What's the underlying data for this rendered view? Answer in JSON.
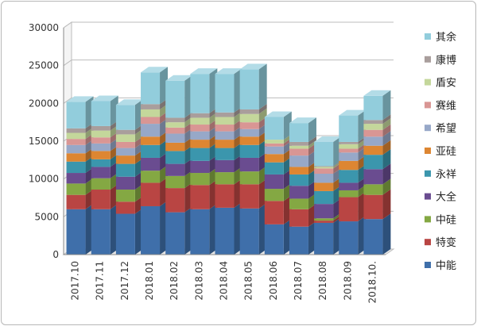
{
  "chart_data": {
    "type": "bar",
    "stacked": true,
    "three_d": true,
    "ylim": [
      0,
      30000
    ],
    "yticks": [
      0,
      5000,
      10000,
      15000,
      20000,
      25000,
      30000
    ],
    "grid": true,
    "legend_position": "right",
    "categories": [
      "2017.10",
      "2017.11",
      "2017.12",
      "2018.01",
      "2018.02",
      "2018.03",
      "2018.04",
      "2018.05",
      "2018.06",
      "2018.07",
      "2018.08",
      "2018.09",
      "2018.10."
    ],
    "series": [
      {
        "name": "中能",
        "color": "#3f6faa",
        "values": [
          6000,
          6000,
          5400,
          6400,
          5600,
          6000,
          6200,
          6100,
          4000,
          3700,
          4200,
          4400,
          4700
        ]
      },
      {
        "name": "特变",
        "color": "#b94543",
        "values": [
          1900,
          2600,
          1600,
          3100,
          3200,
          3200,
          3100,
          3200,
          3100,
          2300,
          300,
          3200,
          3200
        ]
      },
      {
        "name": "中硅",
        "color": "#84a843",
        "values": [
          1500,
          1500,
          1600,
          1600,
          1600,
          1600,
          1600,
          1700,
          1600,
          1400,
          300,
          900,
          1400
        ]
      },
      {
        "name": "大全",
        "color": "#6a4c90",
        "values": [
          1400,
          1500,
          1700,
          1700,
          1600,
          1600,
          1600,
          1800,
          1900,
          1700,
          1900,
          1000,
          2000
        ]
      },
      {
        "name": "永祥",
        "color": "#3b96ad",
        "values": [
          1500,
          1000,
          1700,
          1700,
          1700,
          1700,
          1600,
          1700,
          1600,
          1500,
          1700,
          1700,
          1900
        ]
      },
      {
        "name": "亚硅",
        "color": "#dd8632",
        "values": [
          1100,
          1100,
          1100,
          1100,
          1100,
          1100,
          1100,
          1100,
          1100,
          1000,
          1100,
          1200,
          1200
        ]
      },
      {
        "name": "希望",
        "color": "#97a8c8",
        "values": [
          1100,
          1000,
          1000,
          1700,
          1200,
          1100,
          1100,
          1000,
          1000,
          1500,
          1200,
          1100,
          1200
        ]
      },
      {
        "name": "赛维",
        "color": "#d99694",
        "values": [
          800,
          800,
          800,
          900,
          800,
          900,
          900,
          900,
          400,
          900,
          700,
          500,
          900
        ]
      },
      {
        "name": "盾安",
        "color": "#c4d79b",
        "values": [
          800,
          900,
          1000,
          1000,
          700,
          900,
          1000,
          1100,
          500,
          400,
          200,
          600,
          800
        ]
      },
      {
        "name": "康博",
        "color": "#a99e9c",
        "values": [
          600,
          600,
          600,
          700,
          600,
          600,
          600,
          600,
          0,
          500,
          100,
          300,
          500
        ]
      },
      {
        "name": "其余",
        "color": "#92cddc",
        "values": [
          3500,
          3300,
          3300,
          4200,
          4900,
          5200,
          5100,
          5300,
          3000,
          2500,
          3200,
          3500,
          3200
        ]
      }
    ]
  }
}
